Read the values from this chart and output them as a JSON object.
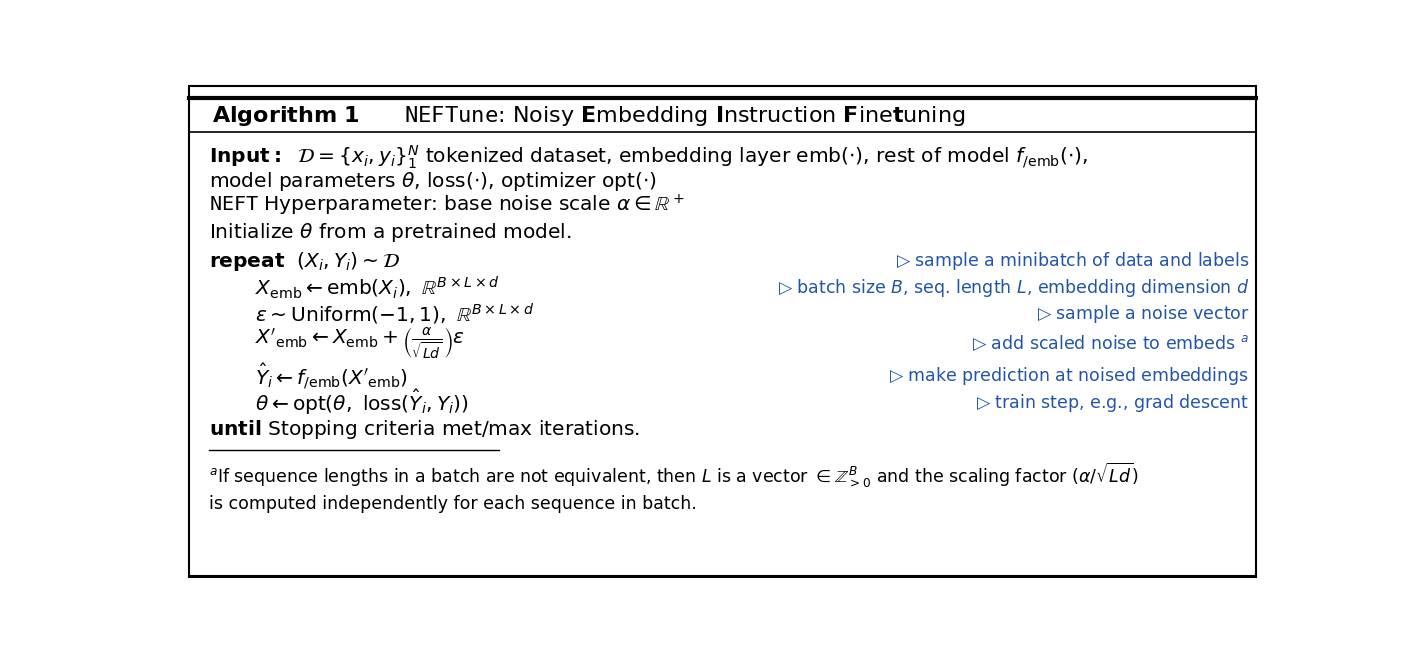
{
  "bg_color": "#ffffff",
  "figsize": [
    14.1,
    6.59
  ],
  "dpi": 100,
  "comment_color": "#2255aa"
}
